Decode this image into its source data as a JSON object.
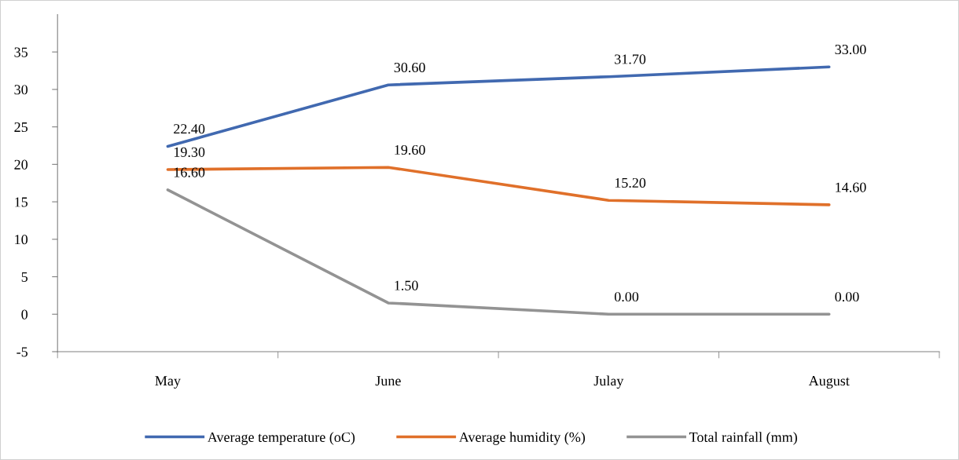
{
  "chart_data": {
    "type": "line",
    "categories": [
      "May",
      "June",
      "Julay",
      "August"
    ],
    "series": [
      {
        "name": "Average temperature (oC)",
        "color": "#4169b0",
        "values": [
          22.4,
          30.6,
          31.7,
          33.0
        ],
        "value_labels": [
          "22.40",
          "30.60",
          "31.70",
          "33.00"
        ]
      },
      {
        "name": "Average humidity (%)",
        "color": "#e0702a",
        "values": [
          19.3,
          19.6,
          15.2,
          14.6
        ],
        "value_labels": [
          "19.30",
          "19.60",
          "15.20",
          "14.60"
        ]
      },
      {
        "name": "Total rainfall (mm)",
        "color": "#939393",
        "values": [
          16.6,
          1.5,
          0.0,
          0.0
        ],
        "value_labels": [
          "16.60",
          "1.50",
          "0.00",
          "0.00"
        ]
      }
    ],
    "ylim": [
      -5,
      40
    ],
    "yticks": [
      -5,
      0,
      5,
      10,
      15,
      20,
      25,
      30,
      35
    ],
    "grid": false,
    "legend": "bottom",
    "marker": "none",
    "line_style": "solid"
  }
}
